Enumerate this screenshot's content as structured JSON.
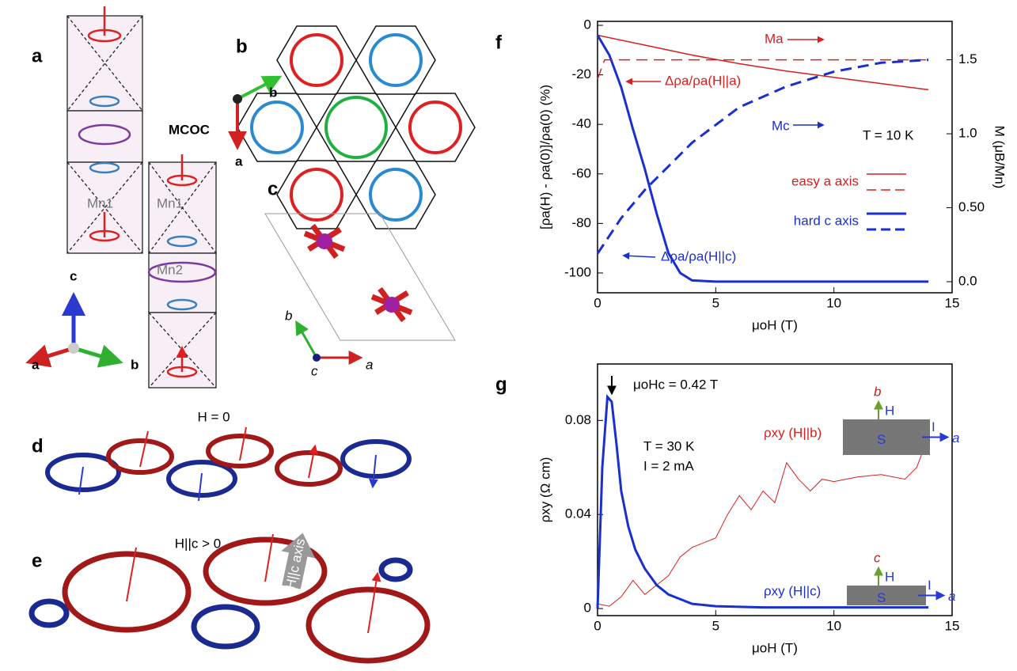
{
  "panel_labels": [
    "a",
    "b",
    "c",
    "d",
    "e",
    "f",
    "g"
  ],
  "panel_a": {
    "moment_label": "MCOC",
    "site_labels": [
      "Mn1",
      "Mn1",
      "Mn2"
    ],
    "axes": [
      "c",
      "a",
      "b"
    ]
  },
  "panel_b": {
    "axes": [
      "b",
      "a"
    ]
  },
  "panel_c": {
    "axes": [
      "b",
      "c",
      "a"
    ]
  },
  "panel_d": {
    "title": "H = 0"
  },
  "panel_e": {
    "title": "H||c > 0",
    "arrow_label": "H||c axis"
  },
  "chart_data": [
    {
      "type": "line",
      "xlabel": "μoH (T)",
      "ylabel": "[ρa(H) - ρa(0)]/ρa(0) (%)",
      "y2label": "M (μB/Mn)",
      "xlim": [
        0,
        15
      ],
      "ylim": [
        -108,
        1.6
      ],
      "y2lim": [
        -0.075,
        1.76
      ],
      "xticks": [
        0,
        5,
        10,
        15
      ],
      "yticks": [
        0,
        -20,
        -40,
        -60,
        -80,
        -100
      ],
      "y2ticks": [
        {
          "value": 0,
          "label": "0.0"
        },
        {
          "value": 0.5,
          "label": "0.50"
        },
        {
          "value": 1,
          "label": "1.0"
        },
        1.5
      ],
      "annotations": [
        "T = 10 K"
      ],
      "legend": [
        {
          "label": "easy a axis",
          "color": "#d62020"
        },
        {
          "label": "hard c axis",
          "color": "#1a2fd0"
        }
      ],
      "series": [
        {
          "name": "Δρa/ρa(H||a)",
          "color": "#d62020",
          "dashed": false,
          "width": 1.5,
          "x": [
            0,
            2,
            4,
            6,
            8,
            10,
            12,
            14
          ],
          "values": [
            -4,
            -8,
            -12,
            -15.5,
            -18.5,
            -21,
            -23.5,
            -26
          ]
        },
        {
          "name": "Δρa/ρa(H||c)",
          "color": "#1a2fd0",
          "dashed": false,
          "width": 3,
          "x": [
            0,
            0.5,
            1,
            1.5,
            2,
            2.5,
            3,
            3.5,
            4,
            5,
            14
          ],
          "values": [
            -4,
            -12,
            -25,
            -42,
            -58,
            -76,
            -92,
            -100,
            -103,
            -103.5,
            -103.5
          ]
        },
        {
          "name": "Ma",
          "color": "#d62020",
          "dashed": true,
          "width": 1.5,
          "axis": "y2",
          "x": [
            0,
            0.3,
            14
          ],
          "values": [
            1.37,
            1.5,
            1.5
          ]
        },
        {
          "name": "Mc",
          "color": "#1a2fd0",
          "dashed": true,
          "width": 3,
          "axis": "y2",
          "x": [
            0,
            1,
            2,
            4,
            6,
            8,
            10,
            12,
            14
          ],
          "values": [
            0.19,
            0.43,
            0.62,
            0.94,
            1.18,
            1.32,
            1.42,
            1.48,
            1.5
          ]
        }
      ]
    },
    {
      "type": "line",
      "xlabel": "μoH (T)",
      "ylabel": "ρxy (Ω cm)",
      "xlim": [
        0,
        15
      ],
      "ylim": [
        -0.003,
        0.104
      ],
      "xticks": [
        0,
        5,
        10,
        15
      ],
      "yticks": [
        0,
        0.04,
        0.08
      ],
      "annotations": [
        "μoHc = 0.42 T",
        "T = 30 K",
        "I = 2 mA"
      ],
      "insets": [
        [
          "b",
          "H",
          "I",
          "a",
          "S"
        ],
        [
          "c",
          "H",
          "I",
          "a",
          "S"
        ]
      ],
      "series": [
        {
          "name": "ρxy (H||b)",
          "color": "#d62020",
          "dashed": false,
          "width": 1,
          "x": [
            0,
            0.5,
            1,
            1.5,
            2,
            2.5,
            3,
            3.5,
            4,
            5,
            5.5,
            6,
            6.5,
            7,
            7.5,
            8,
            8.5,
            9,
            9.5,
            10,
            11,
            12,
            13,
            13.5,
            14
          ],
          "values": [
            0.002,
            0.001,
            0.005,
            0.012,
            0.006,
            0.01,
            0.014,
            0.022,
            0.026,
            0.03,
            0.04,
            0.048,
            0.042,
            0.05,
            0.045,
            0.062,
            0.055,
            0.05,
            0.055,
            0.054,
            0.056,
            0.057,
            0.055,
            0.06,
            0.073
          ]
        },
        {
          "name": "ρxy (H||c)",
          "color": "#1a2fd0",
          "dashed": false,
          "width": 3,
          "x": [
            0,
            0.2,
            0.42,
            0.6,
            0.8,
            1,
            1.3,
            1.6,
            2,
            2.5,
            3,
            4,
            5,
            7,
            14
          ],
          "values": [
            0,
            0.06,
            0.09,
            0.088,
            0.07,
            0.05,
            0.035,
            0.025,
            0.017,
            0.01,
            0.006,
            0.002,
            0.001,
            0.0005,
            0.0005
          ]
        }
      ]
    }
  ]
}
